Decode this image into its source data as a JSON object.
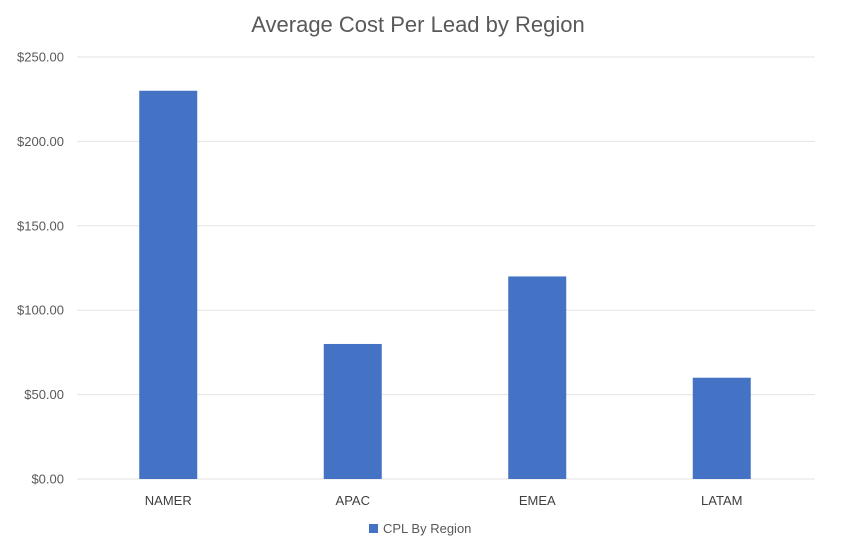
{
  "chart_data": {
    "type": "bar",
    "title": "Average Cost Per Lead by Region",
    "categories": [
      "NAMER",
      "APAC",
      "EMEA",
      "LATAM"
    ],
    "series": [
      {
        "name": "CPL By Region",
        "values": [
          230,
          80,
          120,
          60
        ]
      }
    ],
    "ylim": [
      0,
      250
    ],
    "yticks": [
      0,
      50,
      100,
      150,
      200,
      250
    ],
    "ytick_labels": [
      "$0.00",
      "$50.00",
      "$100.00",
      "$150.00",
      "$200.00",
      "$250.00"
    ],
    "xlabel": "",
    "ylabel": "",
    "grid": true,
    "legend_position": "bottom",
    "bar_color": "#4472C4"
  }
}
